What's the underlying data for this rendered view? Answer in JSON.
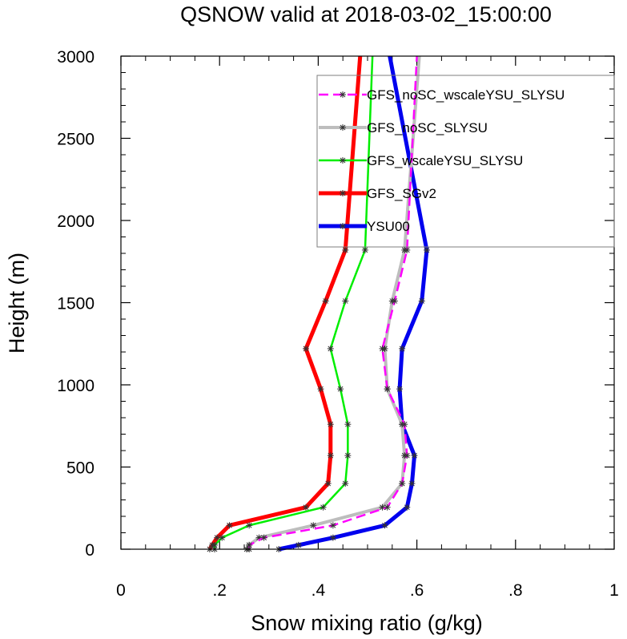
{
  "chart_data": {
    "type": "line",
    "title": "QSNOW valid at 2018-03-02_15:00:00",
    "xlabel": "Snow mixing ratio (g/kg)",
    "ylabel": "Height (m)",
    "xlim": [
      0,
      1
    ],
    "ylim": [
      0,
      3000
    ],
    "x_ticks": [
      0,
      0.2,
      0.4,
      0.6,
      0.8,
      1
    ],
    "x_tick_labels": [
      "0",
      ".2",
      ".4",
      ".6",
      ".8",
      "1"
    ],
    "y_ticks": [
      0,
      500,
      1000,
      1500,
      2000,
      2500,
      3000
    ],
    "y_tick_labels": [
      "0",
      "500",
      "1000",
      "1500",
      "2000",
      "2500",
      "3000"
    ],
    "grid": false,
    "legend_position": "top-right",
    "marker": "asterisk",
    "heights": [
      0,
      25,
      70,
      145,
      255,
      400,
      570,
      760,
      975,
      1220,
      1510,
      1820,
      3000
    ],
    "series": [
      {
        "name": "GFS_noSC_wscaleYSU_SLYSU",
        "color": "#ff00ff",
        "width": 2.5,
        "dash": "12,6",
        "values": [
          0.26,
          0.26,
          0.29,
          0.43,
          0.54,
          0.57,
          0.58,
          0.575,
          0.54,
          0.53,
          0.555,
          0.58,
          0.6
        ]
      },
      {
        "name": "GFS_noSC_SLYSU",
        "color": "#bdbdbd",
        "width": 4,
        "values": [
          0.255,
          0.26,
          0.28,
          0.39,
          0.53,
          0.57,
          0.575,
          0.57,
          0.54,
          0.535,
          0.55,
          0.575,
          0.605
        ]
      },
      {
        "name": "GFS_wscaleYSU_SLYSU",
        "color": "#00ee00",
        "width": 2.5,
        "values": [
          0.19,
          0.19,
          0.205,
          0.26,
          0.41,
          0.455,
          0.46,
          0.46,
          0.445,
          0.425,
          0.455,
          0.495,
          0.51
        ]
      },
      {
        "name": "GFS_SGv2",
        "color": "#ff0000",
        "width": 5,
        "values": [
          0.18,
          0.185,
          0.195,
          0.22,
          0.375,
          0.42,
          0.425,
          0.425,
          0.405,
          0.375,
          0.415,
          0.455,
          0.485
        ]
      },
      {
        "name": "YSU00",
        "color": "#0000ee",
        "width": 5,
        "values": [
          0.32,
          0.36,
          0.43,
          0.535,
          0.58,
          0.59,
          0.595,
          0.57,
          0.565,
          0.57,
          0.61,
          0.62,
          0.545
        ]
      }
    ]
  }
}
